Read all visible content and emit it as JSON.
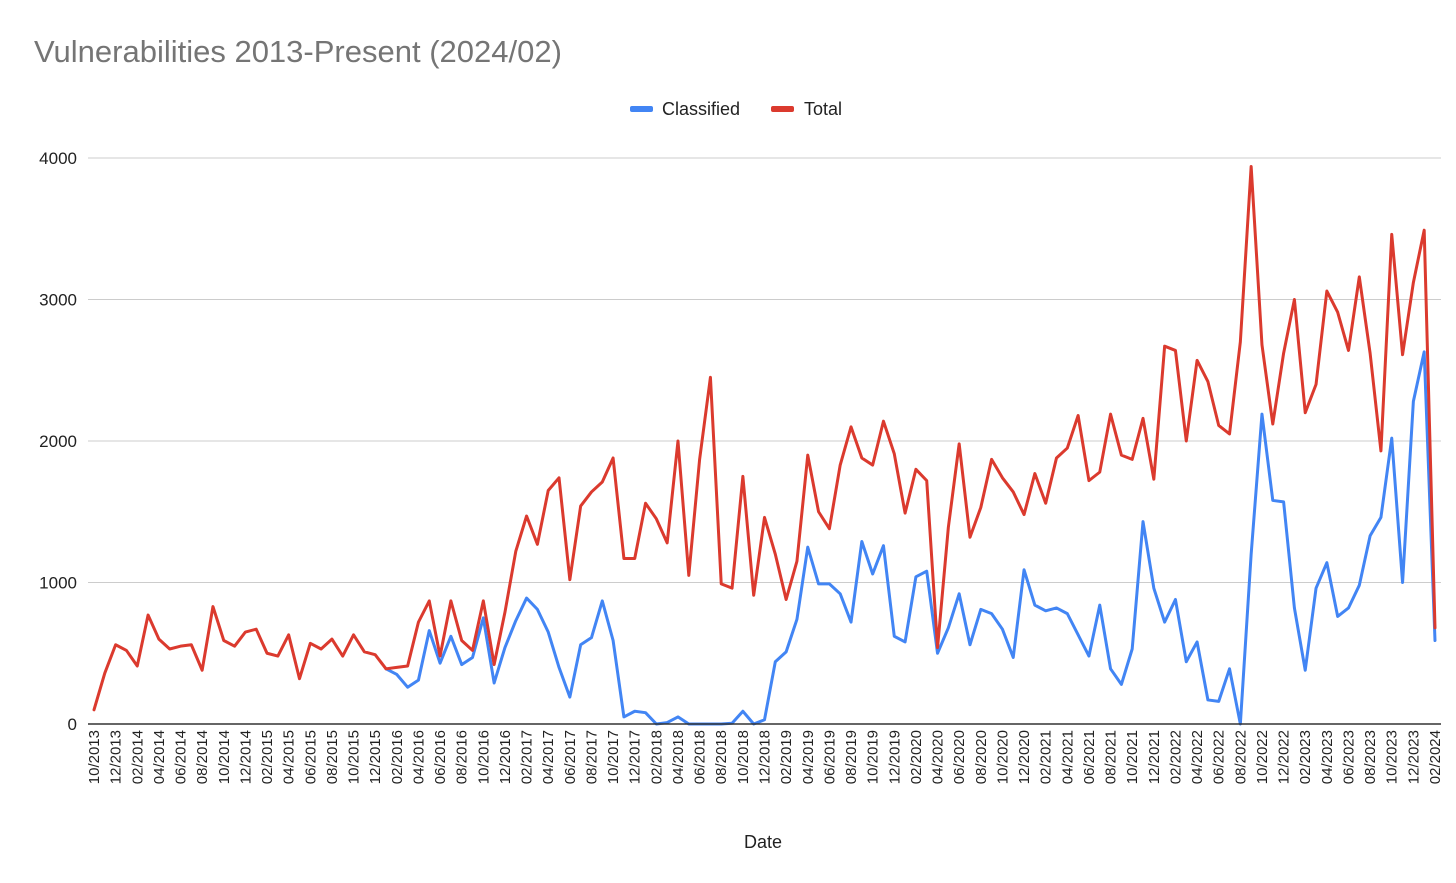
{
  "chart_data": {
    "type": "line",
    "title": "Vulnerabilities 2013-Present (2024/02)",
    "xlabel": "Date",
    "ylabel": "",
    "ylim": [
      0,
      4000
    ],
    "yticks": [
      0,
      1000,
      2000,
      3000,
      4000
    ],
    "grid": true,
    "legend_position": "top-center",
    "legend": [
      "Classified",
      "Total"
    ],
    "x_start": "10/2013",
    "x_end": "02/2024",
    "x_tick_labels": [
      "10/2013",
      "12/2013",
      "02/2014",
      "04/2014",
      "06/2014",
      "08/2014",
      "10/2014",
      "12/2014",
      "02/2015",
      "04/2015",
      "06/2015",
      "08/2015",
      "10/2015",
      "12/2015",
      "02/2016",
      "04/2016",
      "06/2016",
      "08/2016",
      "10/2016",
      "12/2016",
      "02/2017",
      "04/2017",
      "06/2017",
      "08/2017",
      "10/2017",
      "12/2017",
      "02/2018",
      "04/2018",
      "06/2018",
      "08/2018",
      "10/2018",
      "12/2018",
      "02/2019",
      "04/2019",
      "06/2019",
      "08/2019",
      "10/2019",
      "12/2019",
      "02/2020",
      "04/2020",
      "06/2020",
      "08/2020",
      "10/2020",
      "12/2020",
      "02/2021",
      "04/2021",
      "06/2021",
      "08/2021",
      "10/2021",
      "12/2021",
      "02/2022",
      "04/2022",
      "06/2022",
      "08/2022",
      "10/2022",
      "12/2022",
      "02/2023",
      "04/2023",
      "06/2023",
      "08/2023",
      "10/2023",
      "12/2023",
      "02/2024"
    ],
    "series": [
      {
        "name": "Classified",
        "color": "#4285f4",
        "start_index": 27,
        "values": [
          390,
          350,
          260,
          310,
          660,
          430,
          620,
          420,
          470,
          750,
          290,
          540,
          730,
          890,
          810,
          650,
          400,
          190,
          560,
          610,
          870,
          590,
          50,
          90,
          80,
          0,
          10,
          50,
          0,
          0,
          0,
          0,
          5,
          90,
          0,
          30,
          440,
          510,
          740,
          1250,
          990,
          990,
          920,
          720,
          1290,
          1060,
          1260,
          620,
          580,
          1040,
          1080,
          500,
          680,
          920,
          560,
          810,
          780,
          670,
          470,
          1090,
          840,
          800,
          820,
          780,
          630,
          480,
          840,
          390,
          280,
          530,
          1430,
          960,
          720,
          880,
          440,
          580,
          170,
          160,
          390,
          0,
          1200,
          2190,
          1580,
          1570,
          820,
          380,
          960,
          1140,
          760,
          820,
          980,
          1330,
          1460,
          2020,
          1000,
          2280,
          2630,
          590
        ]
      },
      {
        "name": "Total",
        "color": "#db3a2e",
        "start_index": 0,
        "values": [
          100,
          360,
          560,
          520,
          410,
          770,
          600,
          530,
          550,
          560,
          380,
          830,
          590,
          550,
          650,
          670,
          500,
          480,
          630,
          320,
          570,
          530,
          600,
          480,
          630,
          510,
          490,
          390,
          400,
          410,
          720,
          870,
          480,
          870,
          590,
          520,
          870,
          420,
          790,
          1220,
          1470,
          1270,
          1650,
          1740,
          1020,
          1540,
          1640,
          1710,
          1880,
          1170,
          1170,
          1560,
          1450,
          1280,
          2000,
          1050,
          1870,
          2450,
          990,
          960,
          1750,
          910,
          1460,
          1200,
          880,
          1150,
          1900,
          1500,
          1380,
          1830,
          2100,
          1880,
          1830,
          2140,
          1910,
          1490,
          1800,
          1720,
          540,
          1390,
          1980,
          1320,
          1530,
          1870,
          1740,
          1640,
          1480,
          1770,
          1560,
          1880,
          1950,
          2180,
          1720,
          1780,
          2190,
          1900,
          1870,
          2160,
          1730,
          2670,
          2640,
          2000,
          2570,
          2420,
          2110,
          2050,
          2700,
          3940,
          2680,
          2120,
          2620,
          3000,
          2200,
          2400,
          3060,
          2910,
          2640,
          3160,
          2620,
          1930,
          3460,
          2610,
          3120,
          3490,
          680
        ]
      }
    ]
  }
}
